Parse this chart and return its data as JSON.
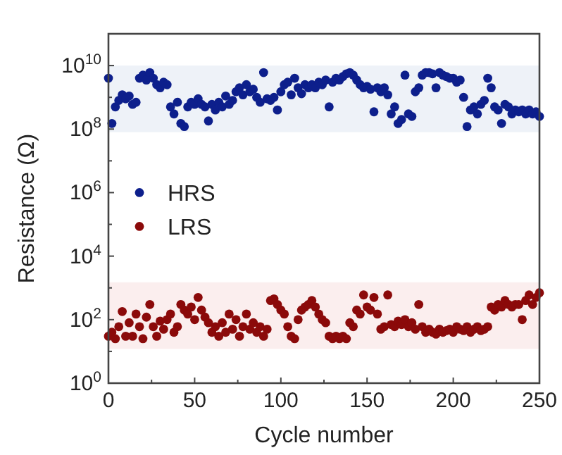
{
  "chart_data": {
    "type": "scatter",
    "xlabel": "Cycle number",
    "ylabel": "Resistance (Ω)",
    "log": "y",
    "marker": "circle",
    "legend": "left",
    "grid": false,
    "xlim": [
      0,
      250
    ],
    "xticks": [
      0,
      {
        "value": 25,
        "label": null
      },
      50,
      {
        "value": 75,
        "label": null
      },
      100,
      {
        "value": 125,
        "label": null
      },
      150,
      {
        "value": 175,
        "label": null
      },
      200,
      {
        "value": 225,
        "label": null
      },
      250
    ],
    "ylim": [
      1,
      100000000000.0
    ],
    "yticks": [
      {
        "value": 1,
        "label": "10$^{0}$"
      },
      {
        "value": 10,
        "label": null
      },
      {
        "value": 100,
        "label": "10$^{2}$"
      },
      {
        "value": 1000,
        "label": null
      },
      {
        "value": 10000,
        "label": "10$^{4}$"
      },
      {
        "value": 100000,
        "label": null
      },
      {
        "value": 1000000,
        "label": "10$^{6}$"
      },
      {
        "value": 10000000,
        "label": null
      },
      {
        "value": 100000000,
        "label": "10$^{8}$"
      },
      {
        "value": 1000000000,
        "label": null
      },
      {
        "value": 10000000000,
        "label": "10$^{10}$"
      },
      {
        "value": 100000000000,
        "label": null
      }
    ],
    "bands": [
      {
        "axis": "y",
        "from": 80000000,
        "to": 10000000000,
        "color": "#eef2f8"
      },
      {
        "axis": "y",
        "from": 12,
        "to": 1500,
        "color": "#fbeeee"
      }
    ],
    "x": [
      0,
      2,
      4,
      6,
      8,
      10,
      12,
      14,
      16,
      18,
      20,
      22,
      24,
      26,
      28,
      30,
      32,
      34,
      36,
      38,
      40,
      42,
      44,
      46,
      48,
      50,
      52,
      54,
      56,
      58,
      60,
      62,
      64,
      66,
      68,
      70,
      72,
      74,
      76,
      78,
      80,
      82,
      84,
      86,
      88,
      90,
      92,
      94,
      96,
      98,
      100,
      102,
      104,
      106,
      108,
      110,
      112,
      114,
      116,
      118,
      120,
      122,
      124,
      126,
      128,
      130,
      132,
      134,
      136,
      138,
      140,
      142,
      144,
      146,
      148,
      150,
      152,
      154,
      156,
      158,
      160,
      162,
      164,
      166,
      168,
      170,
      172,
      174,
      176,
      178,
      180,
      182,
      184,
      186,
      188,
      190,
      192,
      194,
      196,
      198,
      200,
      202,
      204,
      206,
      208,
      210,
      212,
      214,
      216,
      218,
      220,
      222,
      224,
      226,
      228,
      230,
      232,
      234,
      236,
      238,
      240,
      242,
      244,
      246,
      248,
      250
    ],
    "series": [
      {
        "name": "HRS",
        "color": "#0d1f8c",
        "values": [
          4000000000.0,
          150000000.0,
          500000000.0,
          800000000.0,
          1200000000.0,
          900000000.0,
          1100000000.0,
          600000000.0,
          700000000.0,
          4000000000.0,
          5000000000.0,
          3500000000.0,
          6000000000.0,
          4000000000.0,
          2500000000.0,
          2000000000.0,
          3000000000.0,
          2500000000.0,
          500000000.0,
          300000000.0,
          700000000.0,
          150000000.0,
          120000000.0,
          500000000.0,
          700000000.0,
          600000000.0,
          900000000.0,
          600000000.0,
          500000000.0,
          180000000.0,
          600000000.0,
          400000000.0,
          700000000.0,
          500000000.0,
          1100000000.0,
          600000000.0,
          800000000.0,
          1500000000.0,
          2000000000.0,
          1200000000.0,
          2500000000.0,
          1500000000.0,
          1800000000.0,
          1000000000.0,
          700000000.0,
          6000000000.0,
          900000000.0,
          800000000.0,
          1000000000.0,
          400000000.0,
          1500000000.0,
          2500000000.0,
          3000000000.0,
          1200000000.0,
          4000000000.0,
          2000000000.0,
          1300000000.0,
          2500000000.0,
          2000000000.0,
          2500000000.0,
          2000000000.0,
          3000000000.0,
          2500000000.0,
          3500000000.0,
          500000000.0,
          3000000000.0,
          4000000000.0,
          3500000000.0,
          4500000000.0,
          5500000000.0,
          6000000000.0,
          5000000000.0,
          3500000000.0,
          2500000000.0,
          2000000000.0,
          2200000000.0,
          1800000000.0,
          350000000.0,
          2000000000.0,
          1500000000.0,
          2000000000.0,
          1200000000.0,
          300000000.0,
          500000000.0,
          150000000.0,
          200000000.0,
          5000000000.0,
          300000000.0,
          250000000.0,
          1500000000.0,
          2000000000.0,
          5000000000.0,
          6000000000.0,
          6000000000.0,
          5500000000.0,
          2000000000.0,
          6000000000.0,
          5000000000.0,
          4500000000.0,
          4000000000.0,
          4000000000.0,
          3000000000.0,
          3500000000.0,
          1000000000.0,
          120000000.0,
          400000000.0,
          500000000.0,
          300000000.0,
          600000000.0,
          800000000.0,
          4000000000.0,
          2000000000.0,
          500000000.0,
          400000000.0,
          150000000.0,
          600000000.0,
          500000000.0,
          300000000.0,
          400000000.0,
          350000000.0,
          400000000.0,
          300000000.0,
          400000000.0,
          300000000.0,
          350000000.0,
          250000000.0
        ]
      },
      {
        "name": "LRS",
        "color": "#8b0a0a",
        "values": [
          30,
          40,
          25,
          60,
          180,
          30,
          80,
          30,
          150,
          60,
          25,
          120,
          300,
          60,
          30,
          90,
          50,
          100,
          150,
          40,
          60,
          300,
          200,
          150,
          250,
          100,
          500,
          200,
          120,
          80,
          40,
          60,
          30,
          80,
          40,
          150,
          50,
          100,
          30,
          60,
          150,
          50,
          80,
          40,
          60,
          30,
          50,
          400,
          450,
          300,
          200,
          150,
          60,
          30,
          25,
          100,
          200,
          250,
          300,
          400,
          250,
          150,
          100,
          80,
          30,
          25,
          30,
          25,
          30,
          25,
          80,
          60,
          200,
          150,
          600,
          250,
          200,
          500,
          150,
          50,
          60,
          600,
          70,
          60,
          90,
          70,
          100,
          60,
          80,
          50,
          300,
          60,
          40,
          50,
          40,
          35,
          50,
          40,
          45,
          50,
          40,
          60,
          50,
          45,
          60,
          40,
          50,
          60,
          45,
          50,
          60,
          250,
          200,
          300,
          250,
          400,
          300,
          250,
          300,
          300,
          100,
          400,
          600,
          300,
          500,
          700
        ]
      }
    ]
  }
}
